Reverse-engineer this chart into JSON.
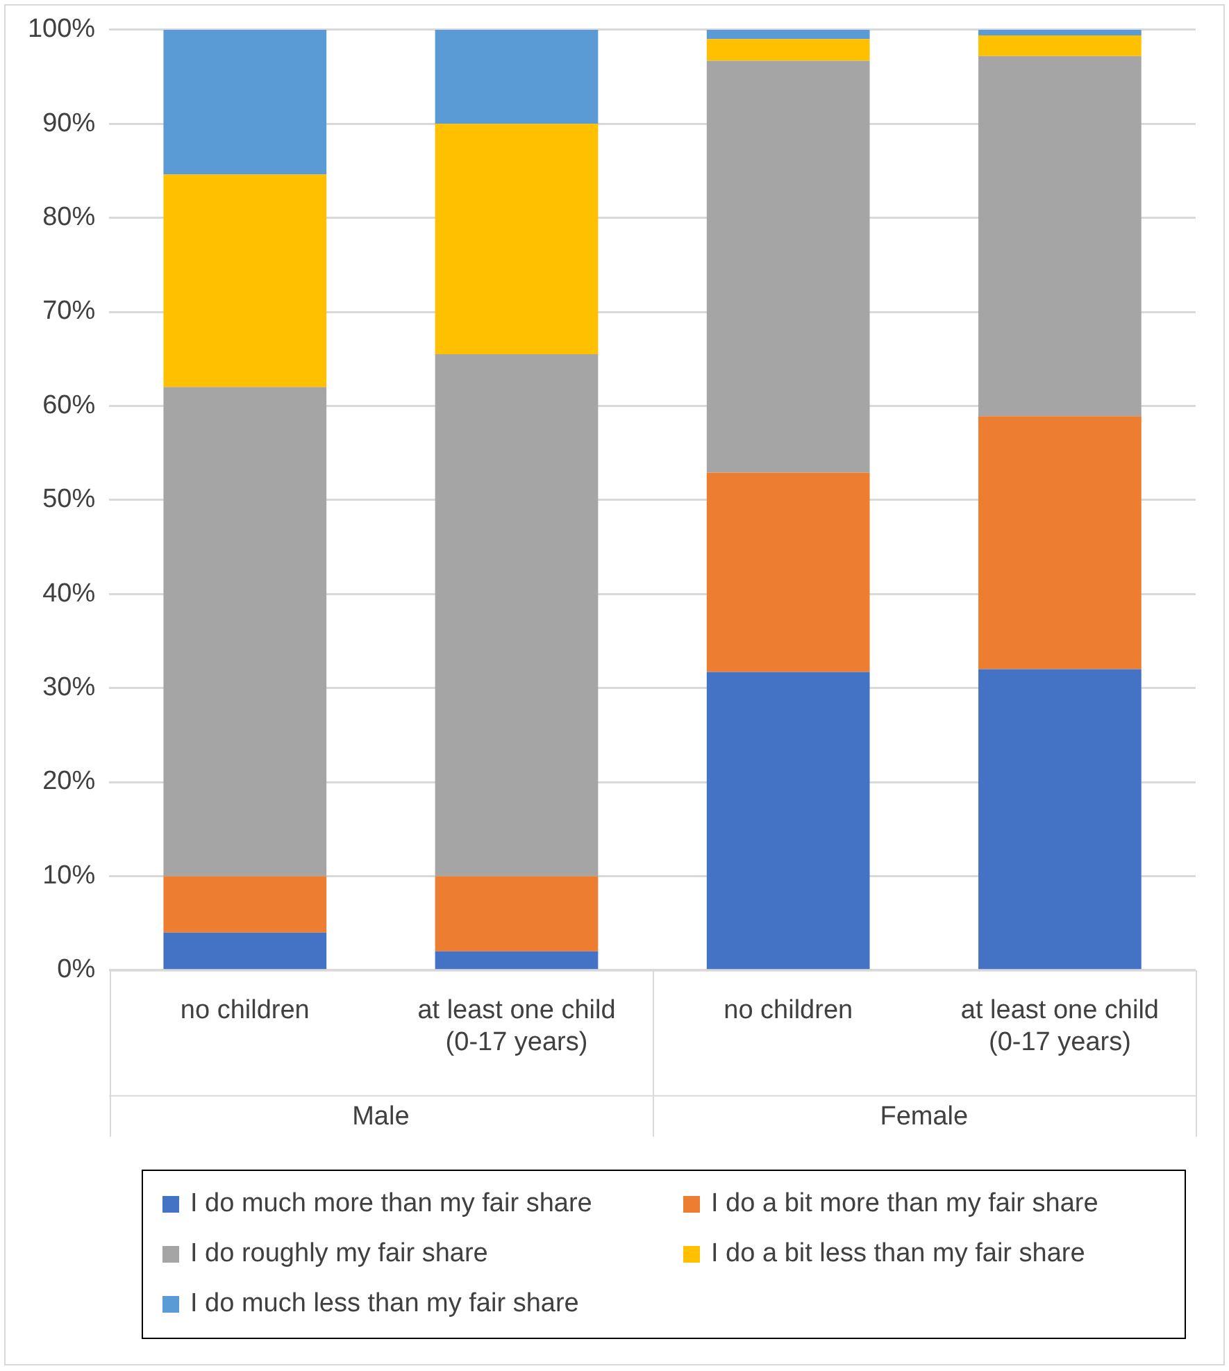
{
  "chart_data": {
    "type": "bar",
    "stacked": true,
    "categories": [
      "no children",
      "at least one child\n(0-17 years)",
      "no children",
      "at least one child\n(0-17 years)"
    ],
    "series": [
      {
        "name": "I do much more than my fair share",
        "color": "#4472c4",
        "values": [
          4,
          2,
          31.7,
          32
        ]
      },
      {
        "name": "I do a bit more than my fair share",
        "color": "#ed7d31",
        "values": [
          6,
          8,
          21.2,
          26.9
        ]
      },
      {
        "name": "I do roughly my fair share",
        "color": "#a5a5a5",
        "values": [
          52,
          55.5,
          43.8,
          38.3
        ]
      },
      {
        "name": "I do a bit less than my fair share",
        "color": "#ffc000",
        "values": [
          22.6,
          24.5,
          2.3,
          2.2
        ]
      },
      {
        "name": "I do much less than my fair share",
        "color": "#5b9bd5",
        "values": [
          15.4,
          10,
          1,
          0.6
        ]
      }
    ],
    "ylim": [
      0,
      100
    ],
    "yticks": [
      {
        "value": 0,
        "label": "0%"
      },
      {
        "value": 10,
        "label": "10%"
      },
      {
        "value": 20,
        "label": "20%"
      },
      {
        "value": 30,
        "label": "30%"
      },
      {
        "value": 40,
        "label": "40%"
      },
      {
        "value": 50,
        "label": "50%"
      },
      {
        "value": 60,
        "label": "60%"
      },
      {
        "value": 70,
        "label": "70%"
      },
      {
        "value": 80,
        "label": "80%"
      },
      {
        "value": 90,
        "label": "90%"
      },
      {
        "value": 100,
        "label": "100%"
      }
    ],
    "grid": "y",
    "legend": "bottom",
    "annotations": [
      "Male",
      "Female"
    ]
  }
}
